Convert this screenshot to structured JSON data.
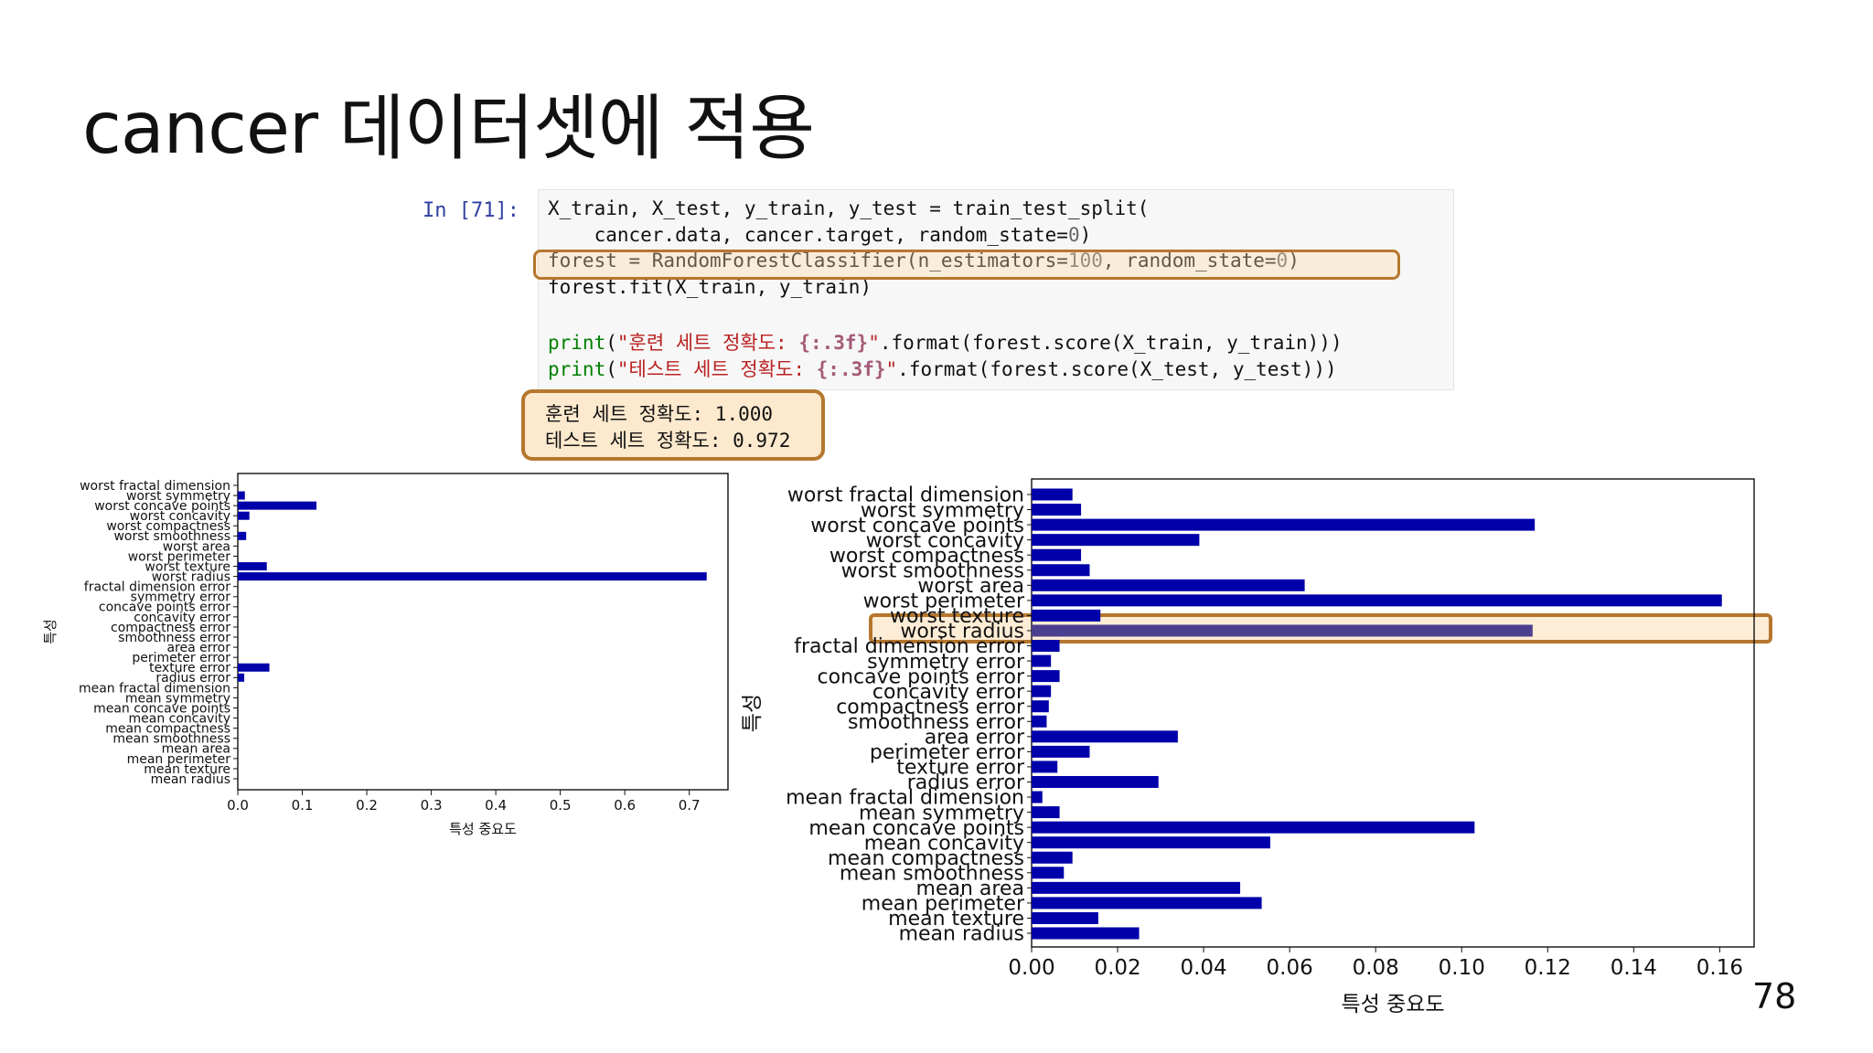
{
  "slide": {
    "title": "cancer 데이터셋에 적용",
    "page_number": "78"
  },
  "notebook": {
    "prompt": "In [71]:",
    "code": [
      [
        {
          "t": "X_train, X_test, y_train, y_test = train_test_split(",
          "c": ""
        }
      ],
      [
        {
          "t": "    cancer.data, cancer.target, random_state=",
          "c": ""
        },
        {
          "t": "0",
          "c": "num"
        },
        {
          "t": ")",
          "c": ""
        }
      ],
      [
        {
          "t": "forest = RandomForestClassifier(n_estimators=",
          "c": ""
        },
        {
          "t": "100",
          "c": "num"
        },
        {
          "t": ", random_state=",
          "c": ""
        },
        {
          "t": "0",
          "c": "num"
        },
        {
          "t": ")",
          "c": ""
        }
      ],
      [
        {
          "t": "forest.fit(X_train, y_train)",
          "c": ""
        }
      ],
      [
        {
          "t": "",
          "c": ""
        }
      ],
      [
        {
          "t": "print",
          "c": "kw"
        },
        {
          "t": "(",
          "c": ""
        },
        {
          "t": "\"훈련 세트 정확도: ",
          "c": "str"
        },
        {
          "t": "{:.3f}",
          "c": "fmt"
        },
        {
          "t": "\"",
          "c": "str"
        },
        {
          "t": ".format(forest.score(X_train, y_train)))",
          "c": ""
        }
      ],
      [
        {
          "t": "print",
          "c": "kw"
        },
        {
          "t": "(",
          "c": ""
        },
        {
          "t": "\"테스트 세트 정확도: ",
          "c": "str"
        },
        {
          "t": "{:.3f}",
          "c": "fmt"
        },
        {
          "t": "\"",
          "c": "str"
        },
        {
          "t": ".format(forest.score(X_test, y_test)))",
          "c": ""
        }
      ]
    ],
    "output": [
      "훈련 세트 정확도: 1.000",
      "테스트 세트 정확도: 0.972"
    ]
  },
  "colors": {
    "bar": "#0000aa",
    "highlight_border": "#b5772e",
    "highlight_fill": "#fde1ba",
    "highlighted_bar": "#4b3f8f"
  },
  "chart_data": [
    {
      "type": "bar",
      "orientation": "horizontal",
      "xlabel": "특성 중요도",
      "ylabel": "특성",
      "xlim": [
        0,
        0.76
      ],
      "xticks": [
        "0.0",
        "0.1",
        "0.2",
        "0.3",
        "0.4",
        "0.5",
        "0.6",
        "0.7"
      ],
      "grid": false,
      "categories": [
        "worst fractal dimension",
        "worst symmetry",
        "worst concave points",
        "worst concavity",
        "worst compactness",
        "worst smoothness",
        "worst area",
        "worst perimeter",
        "worst texture",
        "worst radius",
        "fractal dimension error",
        "symmetry error",
        "concave points error",
        "concavity error",
        "compactness error",
        "smoothness error",
        "area error",
        "perimeter error",
        "texture error",
        "radius error",
        "mean fractal dimension",
        "mean symmetry",
        "mean concave points",
        "mean concavity",
        "mean compactness",
        "mean smoothness",
        "mean area",
        "mean perimeter",
        "mean texture",
        "mean radius"
      ],
      "values": [
        0.0,
        0.011,
        0.122,
        0.018,
        0.0,
        0.013,
        0.0,
        0.0,
        0.045,
        0.727,
        0.0,
        0.0,
        0.0,
        0.0,
        0.0,
        0.0,
        0.0,
        0.0,
        0.049,
        0.01,
        0.0,
        0.0,
        0.0,
        0.0,
        0.0,
        0.0,
        0.0,
        0.0,
        0.0,
        0.0
      ]
    },
    {
      "type": "bar",
      "orientation": "horizontal",
      "xlabel": "특성 중요도",
      "ylabel": "특성",
      "xlim": [
        0,
        0.168
      ],
      "xticks": [
        "0.00",
        "0.02",
        "0.04",
        "0.06",
        "0.08",
        "0.10",
        "0.12",
        "0.14",
        "0.16"
      ],
      "grid": false,
      "highlight": "worst radius",
      "categories": [
        "worst fractal dimension",
        "worst symmetry",
        "worst concave points",
        "worst concavity",
        "worst compactness",
        "worst smoothness",
        "worst area",
        "worst perimeter",
        "worst texture",
        "worst radius",
        "fractal dimension error",
        "symmetry error",
        "concave points error",
        "concavity error",
        "compactness error",
        "smoothness error",
        "area error",
        "perimeter error",
        "texture error",
        "radius error",
        "mean fractal dimension",
        "mean symmetry",
        "mean concave points",
        "mean concavity",
        "mean compactness",
        "mean smoothness",
        "mean area",
        "mean perimeter",
        "mean texture",
        "mean radius"
      ],
      "values": [
        0.0095,
        0.0115,
        0.117,
        0.039,
        0.0115,
        0.0135,
        0.0635,
        0.1605,
        0.016,
        0.1165,
        0.0065,
        0.0045,
        0.0065,
        0.0045,
        0.004,
        0.0035,
        0.034,
        0.0135,
        0.006,
        0.0295,
        0.0025,
        0.0065,
        0.103,
        0.0555,
        0.0095,
        0.0075,
        0.0485,
        0.0535,
        0.0155,
        0.025
      ]
    }
  ]
}
